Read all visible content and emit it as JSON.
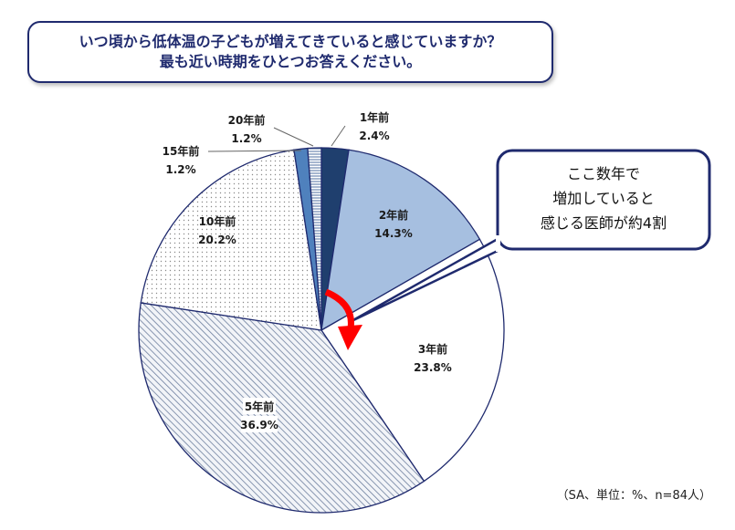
{
  "question": {
    "line1": "いつ頃から低体温の子どもが増えてきていると感じていますか？",
    "line2": "最も近い時期をひとつお答えください。"
  },
  "callout": {
    "line1": "ここ数年で",
    "line2": "増加していると",
    "line3": "感じる医師が約4割"
  },
  "footnote": "（SA、単位：%、n=84人）",
  "colors": {
    "border": "#1f2a6e",
    "arrow": "#ff0000",
    "s1": "#1f3f6e",
    "s2": "#a6bfe0",
    "s3": "#ffffff",
    "s5": "#8fa3c4",
    "s10": "#ffffff",
    "s15": "#4f81bd",
    "s20": "#dbe5f1"
  },
  "chart_data": {
    "type": "pie",
    "categories": [
      "1年前",
      "2年前",
      "3年前",
      "5年前",
      "10年前",
      "15年前",
      "20年前"
    ],
    "values": [
      2.4,
      14.3,
      23.8,
      36.9,
      20.2,
      1.2,
      1.2
    ],
    "value_labels": [
      "2.4%",
      "14.3%",
      "23.8%",
      "36.9%",
      "20.2%",
      "1.2%",
      "1.2%"
    ],
    "start": "12 o'clock, clockwise"
  }
}
